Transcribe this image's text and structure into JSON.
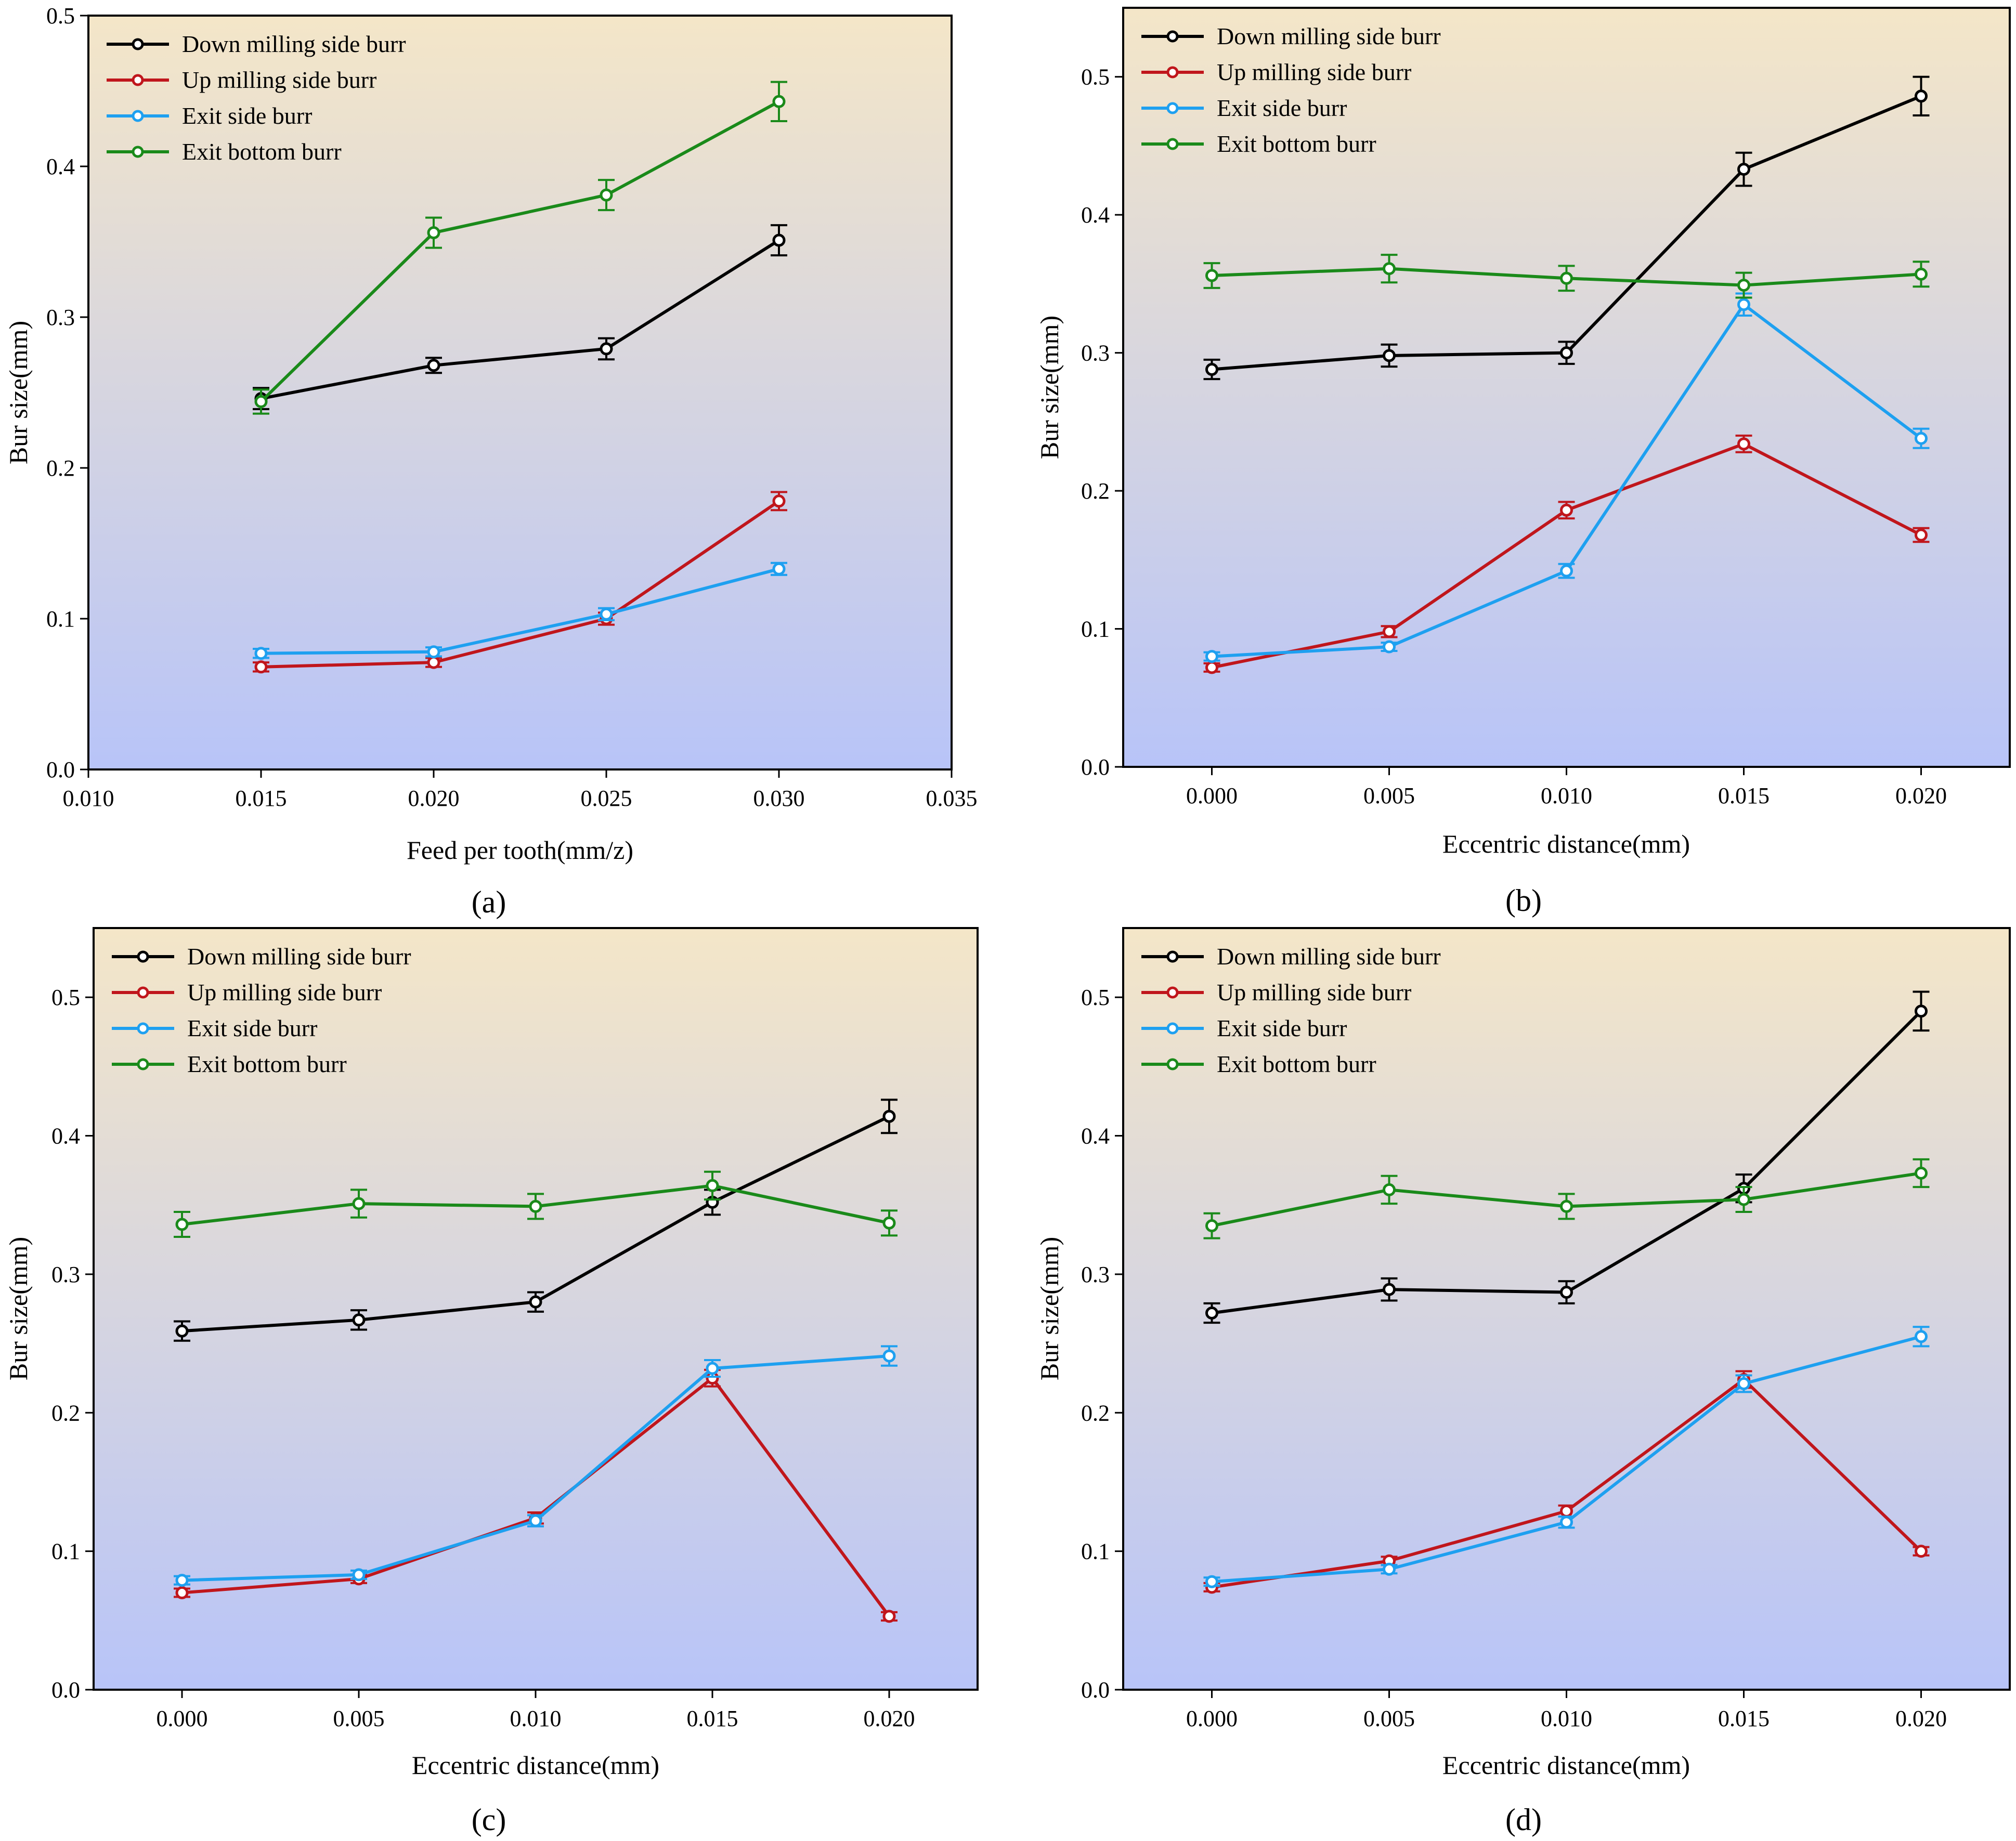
{
  "figure_panels_labels": [
    "(a)",
    "(b)",
    "(c)",
    "(d)"
  ],
  "colors": {
    "down_milling_side_burr": "#000000",
    "up_milling_side_burr": "#c0161c",
    "exit_side_burr": "#1ea0f0",
    "exit_bottom_burr": "#1a8a1a",
    "bg_top": "#f4e6c8",
    "bg_bottom": "#b8c4f8"
  },
  "chart_data": [
    {
      "type": "line",
      "panel_label": "a",
      "xlabel": "Feed per tooth(mm/z)",
      "ylabel": "Bur size(mm)",
      "xlim": [
        0.01,
        0.035
      ],
      "ylim": [
        0.0,
        0.5
      ],
      "xticks": [
        0.01,
        0.015,
        0.02,
        0.025,
        0.03,
        0.035
      ],
      "xtick_labels": [
        "0.010",
        "0.015",
        "0.020",
        "0.025",
        "0.030",
        "0.035"
      ],
      "yticks": [
        0.0,
        0.1,
        0.2,
        0.3,
        0.4,
        0.5
      ],
      "ytick_labels": [
        "0.0",
        "0.1",
        "0.2",
        "0.3",
        "0.4",
        "0.5"
      ],
      "legend": "top-left",
      "x": [
        0.015,
        0.02,
        0.025,
        0.03
      ],
      "series": [
        {
          "name": "Down milling side burr",
          "color": "#000000",
          "values": [
            0.246,
            0.268,
            0.279,
            0.351
          ],
          "errors": [
            0.007,
            0.005,
            0.007,
            0.01
          ]
        },
        {
          "name": "Up milling side burr",
          "color": "#c0161c",
          "values": [
            0.068,
            0.071,
            0.1,
            0.178
          ],
          "errors": [
            0.003,
            0.003,
            0.004,
            0.006
          ]
        },
        {
          "name": "Exit side burr",
          "color": "#1ea0f0",
          "values": [
            0.077,
            0.078,
            0.103,
            0.133
          ],
          "errors": [
            0.003,
            0.003,
            0.004,
            0.004
          ]
        },
        {
          "name": "Exit bottom burr",
          "color": "#1a8a1a",
          "values": [
            0.244,
            0.356,
            0.381,
            0.443
          ],
          "errors": [
            0.008,
            0.01,
            0.01,
            0.013
          ]
        }
      ]
    },
    {
      "type": "line",
      "panel_label": "b",
      "xlabel": "Eccentric distance(mm)",
      "ylabel": "Bur size(mm)",
      "xlim": [
        -0.0025,
        0.0225
      ],
      "ylim": [
        0.0,
        0.55
      ],
      "xticks": [
        0.0,
        0.005,
        0.01,
        0.015,
        0.02
      ],
      "xtick_labels": [
        "0.000",
        "0.005",
        "0.010",
        "0.015",
        "0.020"
      ],
      "yticks": [
        0.0,
        0.1,
        0.2,
        0.3,
        0.4,
        0.5
      ],
      "ytick_labels": [
        "0.0",
        "0.1",
        "0.2",
        "0.3",
        "0.4",
        "0.5"
      ],
      "legend": "top-left",
      "x": [
        0.0,
        0.005,
        0.01,
        0.015,
        0.02
      ],
      "series": [
        {
          "name": "Down milling side burr",
          "color": "#000000",
          "values": [
            0.288,
            0.298,
            0.3,
            0.433,
            0.486
          ],
          "errors": [
            0.007,
            0.008,
            0.008,
            0.012,
            0.014
          ]
        },
        {
          "name": "Up milling side burr",
          "color": "#c0161c",
          "values": [
            0.072,
            0.098,
            0.186,
            0.234,
            0.168
          ],
          "errors": [
            0.003,
            0.004,
            0.006,
            0.006,
            0.005
          ]
        },
        {
          "name": "Exit side burr",
          "color": "#1ea0f0",
          "values": [
            0.08,
            0.087,
            0.142,
            0.335,
            0.238
          ],
          "errors": [
            0.003,
            0.003,
            0.005,
            0.008,
            0.007
          ]
        },
        {
          "name": "Exit bottom burr",
          "color": "#1a8a1a",
          "values": [
            0.356,
            0.361,
            0.354,
            0.349,
            0.357
          ],
          "errors": [
            0.009,
            0.01,
            0.009,
            0.009,
            0.009
          ]
        }
      ]
    },
    {
      "type": "line",
      "panel_label": "c",
      "xlabel": "Eccentric distance(mm)",
      "ylabel": "Bur size(mm)",
      "xlim": [
        -0.0025,
        0.0225
      ],
      "ylim": [
        0.0,
        0.55
      ],
      "xticks": [
        0.0,
        0.005,
        0.01,
        0.015,
        0.02
      ],
      "xtick_labels": [
        "0.000",
        "0.005",
        "0.010",
        "0.015",
        "0.020"
      ],
      "yticks": [
        0.0,
        0.1,
        0.2,
        0.3,
        0.4,
        0.5
      ],
      "ytick_labels": [
        "0.0",
        "0.1",
        "0.2",
        "0.3",
        "0.4",
        "0.5"
      ],
      "legend": "top-left",
      "x": [
        0.0,
        0.005,
        0.01,
        0.015,
        0.02
      ],
      "series": [
        {
          "name": "Down milling side burr",
          "color": "#000000",
          "values": [
            0.259,
            0.267,
            0.28,
            0.352,
            0.414
          ],
          "errors": [
            0.007,
            0.007,
            0.007,
            0.009,
            0.012
          ]
        },
        {
          "name": "Up milling side burr",
          "color": "#c0161c",
          "values": [
            0.07,
            0.08,
            0.124,
            0.225,
            0.053
          ],
          "errors": [
            0.003,
            0.003,
            0.004,
            0.006,
            0.003
          ]
        },
        {
          "name": "Exit side burr",
          "color": "#1ea0f0",
          "values": [
            0.079,
            0.083,
            0.122,
            0.232,
            0.241
          ],
          "errors": [
            0.003,
            0.003,
            0.004,
            0.006,
            0.007
          ]
        },
        {
          "name": "Exit bottom burr",
          "color": "#1a8a1a",
          "values": [
            0.336,
            0.351,
            0.349,
            0.364,
            0.337
          ],
          "errors": [
            0.009,
            0.01,
            0.009,
            0.01,
            0.009
          ]
        }
      ]
    },
    {
      "type": "line",
      "panel_label": "d",
      "xlabel": "Eccentric distance(mm)",
      "ylabel": "Bur size(mm)",
      "xlim": [
        -0.0025,
        0.0225
      ],
      "ylim": [
        0.0,
        0.55
      ],
      "xticks": [
        0.0,
        0.005,
        0.01,
        0.015,
        0.02
      ],
      "xtick_labels": [
        "0.000",
        "0.005",
        "0.010",
        "0.015",
        "0.020"
      ],
      "yticks": [
        0.0,
        0.1,
        0.2,
        0.3,
        0.4,
        0.5
      ],
      "ytick_labels": [
        "0.0",
        "0.1",
        "0.2",
        "0.3",
        "0.4",
        "0.5"
      ],
      "legend": "top-left",
      "x": [
        0.0,
        0.005,
        0.01,
        0.015,
        0.02
      ],
      "series": [
        {
          "name": "Down milling side burr",
          "color": "#000000",
          "values": [
            0.272,
            0.289,
            0.287,
            0.362,
            0.49
          ],
          "errors": [
            0.007,
            0.008,
            0.008,
            0.01,
            0.014
          ]
        },
        {
          "name": "Up milling side burr",
          "color": "#c0161c",
          "values": [
            0.074,
            0.093,
            0.129,
            0.224,
            0.1
          ],
          "errors": [
            0.003,
            0.003,
            0.004,
            0.006,
            0.003
          ]
        },
        {
          "name": "Exit side burr",
          "color": "#1ea0f0",
          "values": [
            0.078,
            0.087,
            0.121,
            0.221,
            0.255
          ],
          "errors": [
            0.003,
            0.003,
            0.004,
            0.006,
            0.007
          ]
        },
        {
          "name": "Exit bottom burr",
          "color": "#1a8a1a",
          "values": [
            0.335,
            0.361,
            0.349,
            0.354,
            0.373
          ],
          "errors": [
            0.009,
            0.01,
            0.009,
            0.009,
            0.01
          ]
        }
      ]
    }
  ]
}
